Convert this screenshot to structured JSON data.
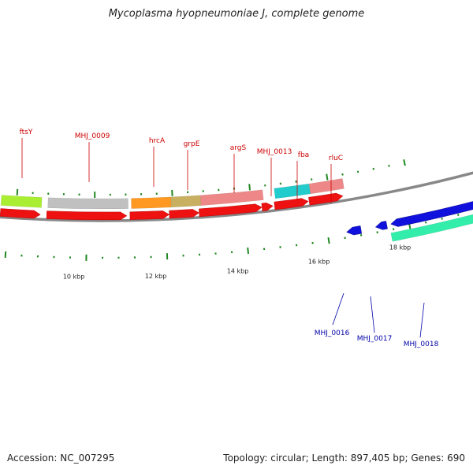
{
  "title": "Mycoplasma hyopneumoniae J, complete genome",
  "footer": {
    "accession": "Accession: NC_007295",
    "summary": "Topology: circular; Length: 897,405 bp; Genes: 690"
  },
  "colors": {
    "forward_cds": "#ee1111",
    "reverse_cds": "#1111dd",
    "forward_label": "#cc0000",
    "reverse_label": "#0000aa",
    "backbone": "#888888",
    "tick": "#228822"
  },
  "scale_labels": [
    "10 kbp",
    "12 kbp",
    "14 kbp",
    "16 kbp",
    "18 kbp"
  ],
  "forward_genes": [
    "ftsY",
    "MHJ_0009",
    "hrcA",
    "grpE",
    "argS",
    "MHJ_0013",
    "fba",
    "rluC"
  ],
  "reverse_genes": [
    "MHJ_0016",
    "MHJ_0017",
    "MHJ_0018"
  ],
  "cog_colors": [
    "#aaee33",
    "#c0c0c0",
    "#ff9922",
    "#c8b060",
    "#ee8888",
    "#22cccc",
    "#ee8888",
    "#33eeaa"
  ]
}
